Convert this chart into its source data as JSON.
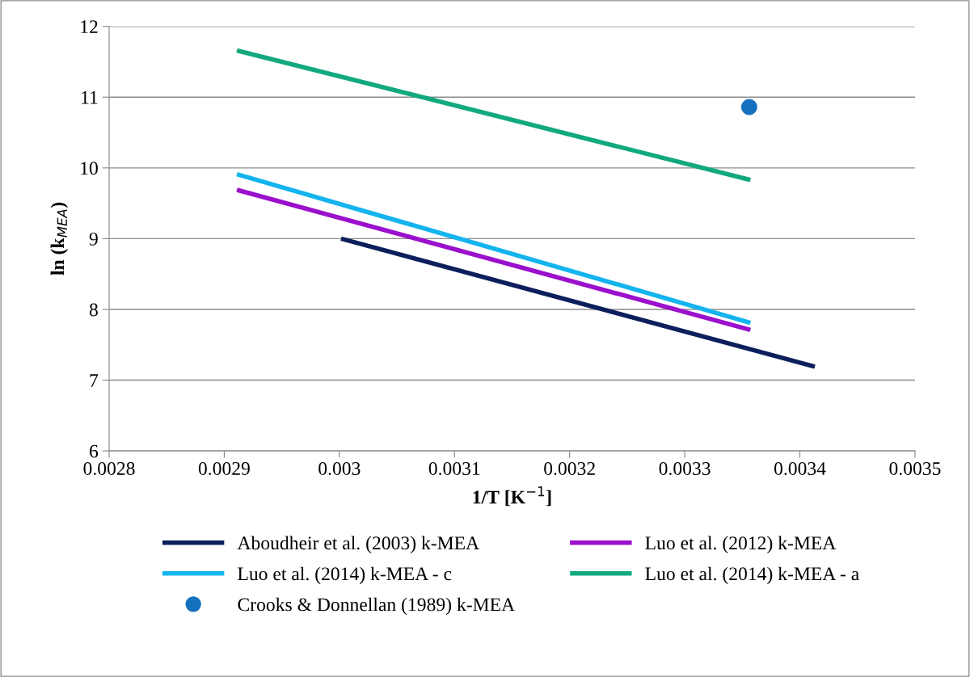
{
  "chart_data": {
    "type": "line",
    "xlabel": "1/T [K$^{−1}$]",
    "ylabel": "ln (k$_{MEA}$)",
    "series": [
      {
        "name": "Aboudheir et al. (2003) k-MEA",
        "color": "#0c1f5c",
        "x": [
          0.0030015,
          0.003413
        ],
        "values": [
          9.0,
          7.19
        ]
      },
      {
        "name": "Luo et al. (2012) k-MEA",
        "color": "#9a10cc",
        "x": [
          0.002911,
          0.003357
        ],
        "values": [
          9.69,
          7.71
        ]
      },
      {
        "name": "Luo et al. (2014) k-MEA - c",
        "color": "#14b4ee",
        "x": [
          0.002911,
          0.003357
        ],
        "values": [
          9.91,
          7.81
        ]
      },
      {
        "name": "Luo et al. (2014) k-MEA - a",
        "color": "#12a97e",
        "x": [
          0.002911,
          0.003357
        ],
        "values": [
          11.66,
          9.83
        ]
      },
      {
        "name": "Crooks & Donnellan (1989) k-MEA",
        "color": "#1570be",
        "type": "scatter",
        "marker": "circle",
        "x": [
          0.003356
        ],
        "values": [
          10.86
        ]
      }
    ],
    "xlim": [
      0.0028,
      0.0035
    ],
    "xticks": [
      0.0028,
      0.0029,
      0.003,
      0.0031,
      0.0032,
      0.0033,
      0.0034,
      0.0035
    ],
    "ylim": [
      6,
      12
    ],
    "yticks": [
      6,
      7,
      8,
      9,
      10,
      11,
      12
    ],
    "grid": "y",
    "legend": "bottom"
  }
}
